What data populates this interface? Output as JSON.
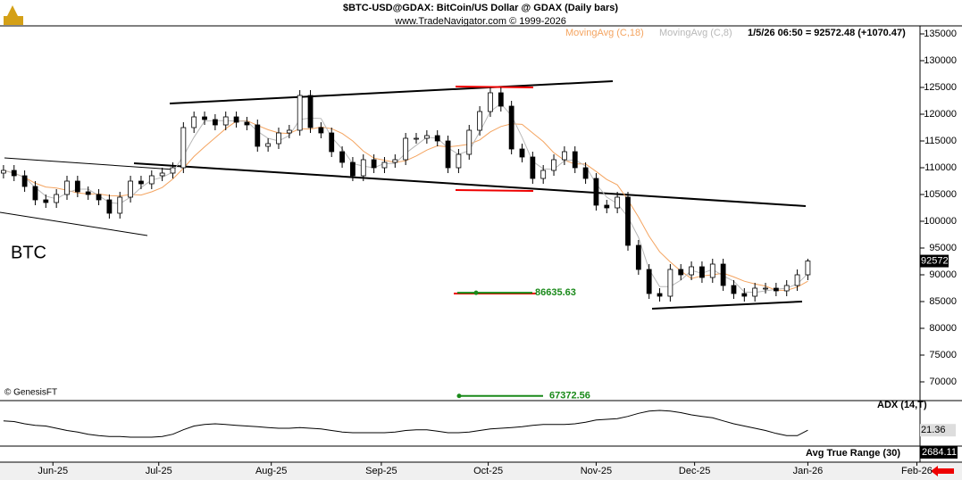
{
  "chart_data": [
    {
      "type": "candlestick",
      "title": "$BTC-USD@GDAX:  BitCoin/US Dollar @ GDAX  (Daily bars)",
      "subtitle": "www.TradeNavigator.com © 1999-2026",
      "label": "BTC",
      "copyright": "© GenesisFT",
      "status": "1/5/26 06:50 = 92572.48 (+1070.47)",
      "last_price_label": "92572",
      "up_color": "#ffffff",
      "down_color": "#000000",
      "open": [
        109000,
        109500,
        108500,
        106500,
        104000,
        103500,
        105000,
        107500,
        105500,
        105000,
        104000,
        101500,
        104500,
        107500,
        107000,
        108500,
        109000,
        110000,
        117500,
        119500,
        119000,
        118000,
        119500,
        118500,
        118000,
        114000,
        114500,
        116500,
        117000,
        123500,
        117500,
        116500,
        113000,
        111000,
        108500,
        111500,
        110000,
        111000,
        111500,
        115500,
        115500,
        116000,
        115000,
        110000,
        112500,
        117000,
        120500,
        124000,
        121500,
        113500,
        112000,
        108000,
        109500,
        111500,
        113000,
        110000,
        108000,
        103000,
        102500,
        104500,
        95500,
        91000,
        86500,
        86000,
        91000,
        90000,
        91500,
        89500,
        92000,
        88000,
        86500,
        86000,
        87500,
        87500,
        87000,
        88000,
        90000
      ],
      "high": [
        110500,
        110500,
        109500,
        107500,
        105000,
        106000,
        108500,
        108500,
        106500,
        106000,
        105000,
        105500,
        108500,
        108500,
        109500,
        110000,
        111000,
        118500,
        120500,
        120500,
        120000,
        120500,
        120500,
        119500,
        119000,
        115500,
        117500,
        118000,
        124500,
        124500,
        118500,
        117500,
        114000,
        112000,
        112500,
        112500,
        112000,
        112500,
        116500,
        116500,
        117000,
        117000,
        116000,
        113500,
        118000,
        121500,
        125000,
        125000,
        122500,
        114500,
        113000,
        110500,
        112500,
        114000,
        114000,
        111000,
        109000,
        104000,
        105500,
        105500,
        96500,
        92000,
        87500,
        92000,
        92000,
        92500,
        92500,
        93000,
        93000,
        89000,
        87500,
        88500,
        88500,
        88500,
        89000,
        91000,
        93000
      ],
      "low": [
        108000,
        107500,
        105500,
        103000,
        102500,
        102500,
        104000,
        104500,
        104000,
        103000,
        100500,
        100500,
        103500,
        106000,
        106000,
        107500,
        108000,
        109000,
        116500,
        118000,
        117000,
        117000,
        117500,
        117000,
        113000,
        113000,
        113500,
        115500,
        116000,
        116500,
        115500,
        112000,
        110000,
        107500,
        107500,
        109000,
        109000,
        110000,
        110500,
        114500,
        114500,
        114000,
        109000,
        109000,
        111500,
        116000,
        119500,
        120500,
        112500,
        111000,
        107000,
        107000,
        108500,
        110500,
        109000,
        107000,
        102000,
        101500,
        101500,
        94500,
        90000,
        85500,
        85000,
        85000,
        89000,
        89000,
        88500,
        88500,
        87000,
        85500,
        85000,
        85000,
        86500,
        86000,
        86000,
        87000,
        89000
      ],
      "close": [
        109500,
        108500,
        106500,
        104000,
        103500,
        105000,
        107500,
        105500,
        105000,
        104000,
        101500,
        104500,
        107500,
        107000,
        108500,
        109000,
        110000,
        117500,
        119500,
        119000,
        118000,
        119500,
        118500,
        118000,
        114000,
        114500,
        116500,
        117000,
        123500,
        117500,
        116500,
        113000,
        111000,
        108500,
        111500,
        110000,
        111000,
        111500,
        115500,
        115500,
        116000,
        115000,
        110000,
        112500,
        117000,
        120500,
        124000,
        121500,
        113500,
        112000,
        108000,
        109500,
        111500,
        113000,
        110000,
        108000,
        103000,
        102500,
        104500,
        95500,
        91000,
        86500,
        86000,
        91000,
        90000,
        91500,
        89500,
        92000,
        88000,
        86500,
        86000,
        87500,
        87500,
        87000,
        88000,
        90000,
        92572.48
      ],
      "series": [
        {
          "name": "MovingAvg (C,18)",
          "color": "#f4a460",
          "values": [
            109500,
            109000,
            108200,
            107100,
            106400,
            106200,
            105800,
            105300,
            105100,
            105100,
            104800,
            104700,
            105000,
            104900,
            105500,
            106300,
            107900,
            109900,
            112100,
            113900,
            115600,
            117300,
            118700,
            118800,
            117900,
            117100,
            116500,
            116400,
            117300,
            117200,
            117600,
            117300,
            116400,
            115000,
            113100,
            111800,
            111400,
            111000,
            111300,
            112200,
            113300,
            114100,
            113900,
            114100,
            114400,
            115200,
            116700,
            117700,
            118200,
            118100,
            116500,
            114900,
            112800,
            111400,
            110700,
            110700,
            109300,
            107800,
            106800,
            104000,
            100800,
            97200,
            94300,
            92400,
            90700,
            89300,
            89800,
            90000,
            90300,
            89600,
            88800,
            88300,
            87900,
            87100,
            87100,
            87700,
            88800
          ]
        },
        {
          "name": "MovingAvg (C,8)",
          "color": "#b8b8b8",
          "values": [
            109500,
            109000,
            108200,
            106300,
            104700,
            104200,
            105300,
            106000,
            106000,
            104800,
            103500,
            103300,
            104500,
            106300,
            107700,
            108200,
            109200,
            112200,
            115700,
            118700,
            118800,
            118800,
            118700,
            118700,
            116800,
            115500,
            115000,
            116000,
            119000,
            119300,
            119200,
            115700,
            113500,
            110800,
            110300,
            110000,
            110800,
            110800,
            112700,
            114200,
            115700,
            115500,
            113700,
            112500,
            113200,
            116700,
            120500,
            122000,
            119700,
            115700,
            111200,
            109800,
            109700,
            111300,
            111500,
            110300,
            107000,
            104500,
            103300,
            100800,
            97000,
            91000,
            87800,
            87800,
            89000,
            90800,
            90300,
            91000,
            89800,
            88800,
            86800,
            86700,
            87000,
            87300,
            87500,
            88300,
            90200
          ]
        }
      ],
      "levels": [
        {
          "value": 86635.63,
          "color": "#1a8a1a"
        },
        {
          "value": 67372.56,
          "color": "#1a8a1a"
        }
      ],
      "ylim": [
        66500,
        136500
      ],
      "yticks": [
        70000,
        75000,
        80000,
        85000,
        90000,
        95000,
        100000,
        105000,
        110000,
        115000,
        120000,
        125000,
        130000,
        135000
      ],
      "xlim": [
        -0.33,
        86.43
      ],
      "xticks": [
        {
          "value": 4.67,
          "label": "Jun-25"
        },
        {
          "value": 14.67,
          "label": "Jul-25"
        },
        {
          "value": 25.3,
          "label": "Aug-25"
        },
        {
          "value": 35.7,
          "label": "Sep-25"
        },
        {
          "value": 45.8,
          "label": "Oct-25"
        },
        {
          "value": 56,
          "label": "Nov-25"
        },
        {
          "value": 65.3,
          "label": "Dec-25"
        },
        {
          "value": 76,
          "label": "Jan-26"
        },
        {
          "value": 86.3,
          "label": "Feb-26"
        }
      ]
    },
    {
      "type": "line",
      "name": "ADX (14,T)",
      "color": "#000000",
      "ylim": [
        0,
        60
      ],
      "values": [
        34,
        33,
        30,
        28,
        27,
        24,
        21,
        19,
        16,
        14,
        13,
        13,
        12,
        12,
        12,
        13,
        16,
        22,
        27,
        29,
        30,
        29,
        28,
        27,
        26,
        25,
        24,
        24,
        25,
        24,
        23,
        21,
        19,
        18,
        18,
        18,
        18,
        19,
        21,
        22,
        22,
        20,
        18,
        18,
        19,
        21,
        23,
        24,
        25,
        26,
        28,
        29,
        29,
        29,
        30,
        32,
        35,
        36,
        37,
        40,
        44,
        47,
        48,
        47,
        45,
        42,
        40,
        38,
        34,
        30,
        27,
        24,
        21,
        17,
        14,
        14,
        21.36
      ]
    },
    {
      "type": "indicator",
      "name": "Avg True Range (30)",
      "values": [
        2684.11
      ]
    }
  ]
}
